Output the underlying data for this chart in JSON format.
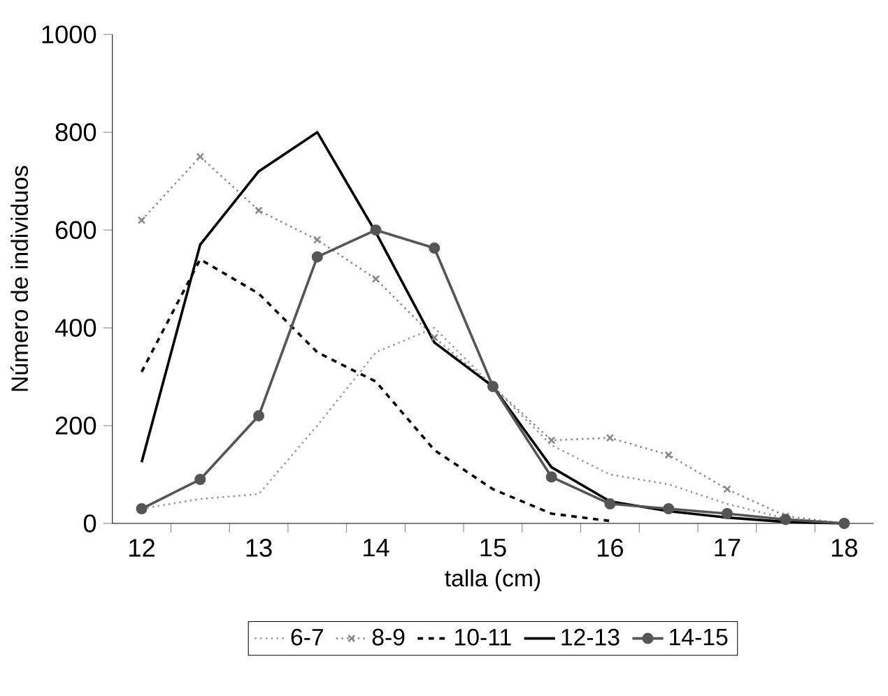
{
  "chart_data": {
    "type": "line",
    "xlabel": "talla (cm)",
    "ylabel": "Número de individuos",
    "x": [
      12,
      12.5,
      13,
      13.5,
      14,
      14.5,
      15,
      15.5,
      16,
      16.5,
      17,
      17.5,
      18
    ],
    "xlim": [
      11.75,
      18.25
    ],
    "xticks": [
      12,
      13,
      14,
      15,
      16,
      17,
      18,
      {
        "value": 12.25,
        "label": null
      },
      {
        "value": 12.75,
        "label": null
      },
      {
        "value": 13.25,
        "label": null
      },
      {
        "value": 13.75,
        "label": null
      },
      {
        "value": 14.25,
        "label": null
      },
      {
        "value": 14.75,
        "label": null
      },
      {
        "value": 15.25,
        "label": null
      },
      {
        "value": 15.75,
        "label": null
      },
      {
        "value": 16.25,
        "label": null
      },
      {
        "value": 16.75,
        "label": null
      },
      {
        "value": 17.25,
        "label": null
      },
      {
        "value": 17.75,
        "label": null
      }
    ],
    "ylim": [
      0,
      1000
    ],
    "yticks": [
      0,
      200,
      400,
      600,
      800,
      1000
    ],
    "grid": false,
    "legend": "bottom",
    "series": [
      {
        "name": "6-7",
        "color": "#9a9a9a",
        "line_style": "dotted",
        "marker": "none",
        "values": [
          30,
          50,
          60,
          200,
          350,
          400,
          280,
          160,
          100,
          80,
          40,
          10,
          0
        ]
      },
      {
        "name": "8-9",
        "color": "#8a8a8a",
        "line_style": "dotted",
        "marker": "cross",
        "values": [
          620,
          750,
          640,
          580,
          500,
          380,
          280,
          170,
          175,
          140,
          70,
          15,
          0
        ]
      },
      {
        "name": "10-11",
        "color": "#000000",
        "line_style": "dashed",
        "marker": "none",
        "values": [
          310,
          540,
          470,
          350,
          290,
          150,
          70,
          20,
          5,
          null,
          null,
          null,
          null
        ]
      },
      {
        "name": "12-13",
        "color": "#000000",
        "line_style": "solid",
        "marker": "none",
        "values": [
          125,
          570,
          720,
          800,
          595,
          370,
          280,
          115,
          45,
          25,
          12,
          3,
          0
        ]
      },
      {
        "name": "14-15",
        "color": "#555555",
        "line_style": "solid",
        "marker": "circle",
        "values": [
          30,
          90,
          220,
          545,
          600,
          563,
          280,
          95,
          40,
          30,
          20,
          8,
          0
        ]
      }
    ]
  }
}
